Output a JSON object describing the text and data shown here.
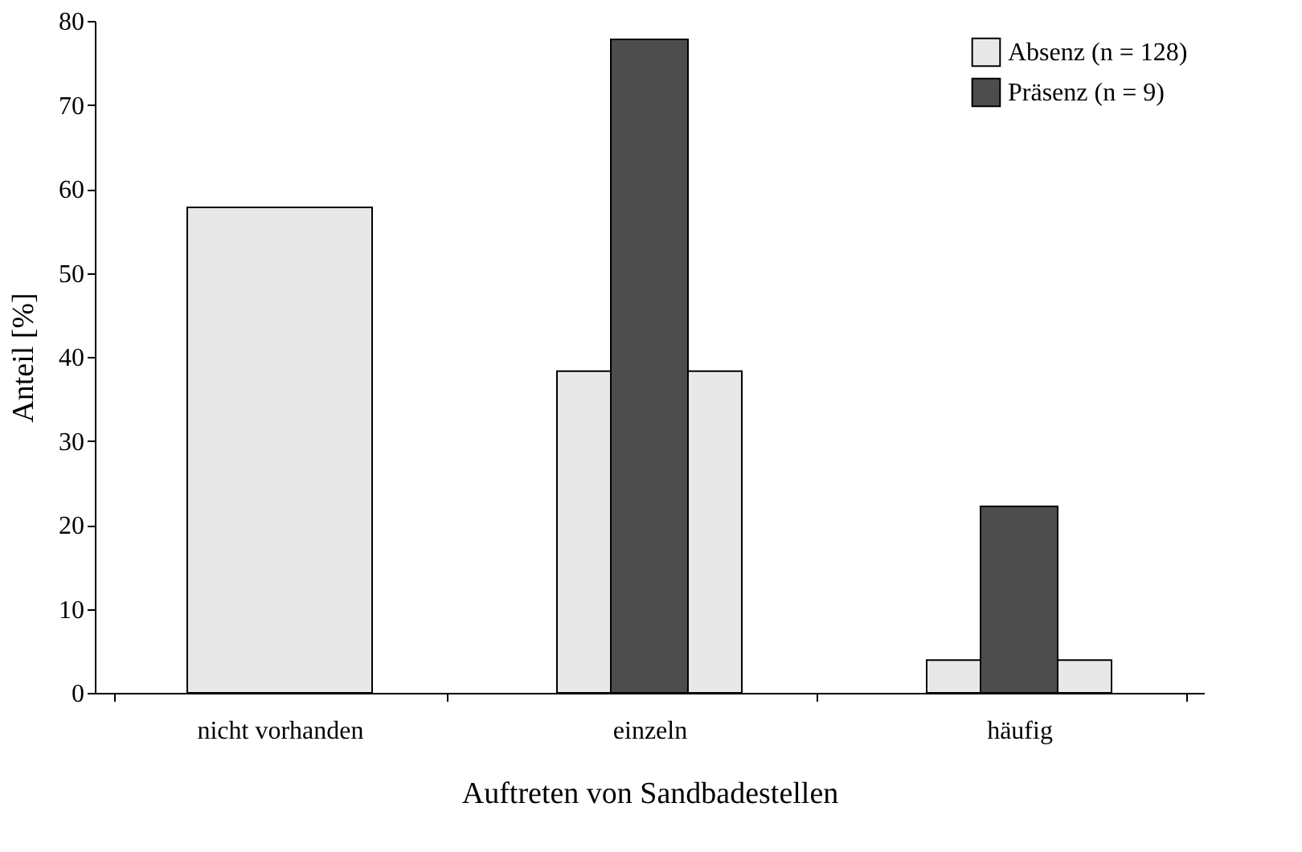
{
  "chart_data": {
    "type": "bar",
    "xlabel": "Auftreten von Sandbadestellen",
    "ylabel": "Anteil [%]",
    "categories": [
      "nicht vorhanden",
      "einzeln",
      "häufig"
    ],
    "series": [
      {
        "name": "Absenz (n = 128)",
        "color": "#e8e8e8",
        "values": [
          57.8,
          38.3,
          3.9
        ]
      },
      {
        "name": "Präsenz (n = 9)",
        "color": "#4d4d4d",
        "values": [
          null,
          77.8,
          22.2
        ]
      }
    ],
    "ylim": [
      0,
      80
    ],
    "yticks": [
      0,
      10,
      20,
      30,
      40,
      50,
      60,
      70,
      80
    ],
    "grid": false,
    "legend": "top right"
  }
}
